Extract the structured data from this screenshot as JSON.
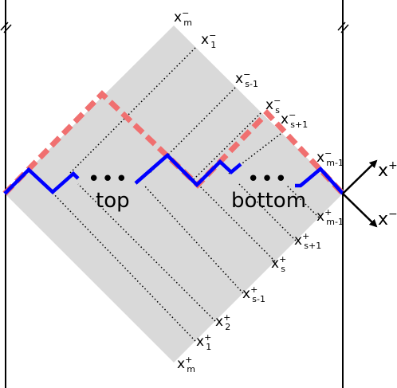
{
  "labels": {
    "xm_minus": {
      "base": "x",
      "sup": "−",
      "sub": "m"
    },
    "x1_minus": {
      "base": "x",
      "sup": "−",
      "sub": "1"
    },
    "xs1_minus": {
      "base": "x",
      "sup": "−",
      "sub": "s-1"
    },
    "xs_minus": {
      "base": "x",
      "sup": "−",
      "sub": "s"
    },
    "xsp1_minus": {
      "base": "x",
      "sup": "−",
      "sub": "s+1"
    },
    "xm1_minus": {
      "base": "x",
      "sup": "−",
      "sub": "m-1"
    },
    "xm1_plus": {
      "base": "x",
      "sup": "+",
      "sub": "m-1"
    },
    "xsp1_plus": {
      "base": "x",
      "sup": "+",
      "sub": "s+1"
    },
    "xs_plus": {
      "base": "x",
      "sup": "+",
      "sub": "s"
    },
    "xs1_plus": {
      "base": "x",
      "sup": "+",
      "sub": "s-1"
    },
    "x2_plus": {
      "base": "x",
      "sup": "+",
      "sub": "2"
    },
    "x1_plus": {
      "base": "x",
      "sup": "+",
      "sub": "1"
    },
    "xm_plus": {
      "base": "x",
      "sup": "+",
      "sub": "m"
    }
  },
  "region_labels": {
    "top": "top",
    "bottom": "bottom"
  },
  "ellipsis": "•••",
  "axes": {
    "x_plus": {
      "base": "x",
      "sup": "+"
    },
    "x_minus": {
      "base": "x",
      "sup": "−"
    }
  },
  "colors": {
    "diamond_fill": "#d9d9d9",
    "dashed_path": "#f07070",
    "zigzag_path": "#0000ff",
    "lines": "#000000"
  }
}
